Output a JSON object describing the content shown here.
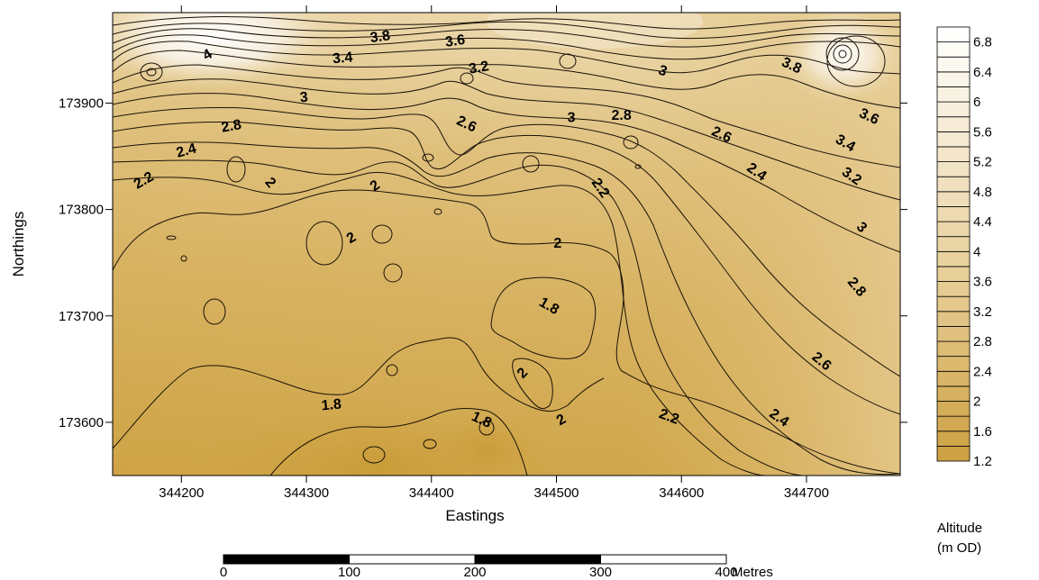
{
  "chart_data": {
    "type": "contour-map",
    "xlabel": "Eastings",
    "ylabel": "Northings",
    "x_range": [
      344145,
      344775
    ],
    "y_range": [
      173550,
      173985
    ],
    "x_ticks": [
      "344200",
      "344300",
      "344400",
      "344500",
      "344600",
      "344700"
    ],
    "x_tick_values": [
      344200,
      344300,
      344400,
      344500,
      344600,
      344700
    ],
    "y_ticks": [
      "173900",
      "173800",
      "173700",
      "173600"
    ],
    "y_tick_values": [
      173900,
      173800,
      173700,
      173600
    ],
    "contour_interval": 0.1,
    "contour_labels": [
      {
        "text": "3.8",
        "e": 344359,
        "n": 173962,
        "angle": -8
      },
      {
        "text": "3.6",
        "e": 344419,
        "n": 173958,
        "angle": -8
      },
      {
        "text": "4",
        "e": 344221,
        "n": 173945,
        "angle": -30
      },
      {
        "text": "3.4",
        "e": 344329,
        "n": 173942,
        "angle": -5
      },
      {
        "text": "3.2",
        "e": 344438,
        "n": 173933,
        "angle": -10
      },
      {
        "text": "3",
        "e": 344298,
        "n": 173905,
        "angle": -5
      },
      {
        "text": "3",
        "e": 344512,
        "n": 173886,
        "angle": 0
      },
      {
        "text": "3",
        "e": 344585,
        "n": 173930,
        "angle": 20
      },
      {
        "text": "2.8",
        "e": 344240,
        "n": 173878,
        "angle": -10
      },
      {
        "text": "2.8",
        "e": 344552,
        "n": 173888,
        "angle": 0
      },
      {
        "text": "2.6",
        "e": 344428,
        "n": 173880,
        "angle": 25
      },
      {
        "text": "2.6",
        "e": 344632,
        "n": 173870,
        "angle": 25
      },
      {
        "text": "2.4",
        "e": 344204,
        "n": 173855,
        "angle": -15
      },
      {
        "text": "2.4",
        "e": 344660,
        "n": 173835,
        "angle": 35
      },
      {
        "text": "2.2",
        "e": 344170,
        "n": 173827,
        "angle": -30
      },
      {
        "text": "2.2",
        "e": 344535,
        "n": 173820,
        "angle": 55
      },
      {
        "text": "2",
        "e": 344271,
        "n": 173825,
        "angle": 50
      },
      {
        "text": "2",
        "e": 344355,
        "n": 173822,
        "angle": -35
      },
      {
        "text": "2",
        "e": 344336,
        "n": 173773,
        "angle": -30
      },
      {
        "text": "2",
        "e": 344501,
        "n": 173768,
        "angle": 0
      },
      {
        "text": "1.8",
        "e": 344494,
        "n": 173709,
        "angle": 30
      },
      {
        "text": "2",
        "e": 344473,
        "n": 173646,
        "angle": -45
      },
      {
        "text": "1.8",
        "e": 344320,
        "n": 173616,
        "angle": -5
      },
      {
        "text": "1.8",
        "e": 344440,
        "n": 173602,
        "angle": 25
      },
      {
        "text": "2",
        "e": 344504,
        "n": 173602,
        "angle": -30
      },
      {
        "text": "2.2",
        "e": 344590,
        "n": 173605,
        "angle": 20
      },
      {
        "text": "3.8",
        "e": 344688,
        "n": 173935,
        "angle": 25
      },
      {
        "text": "3.6",
        "e": 344750,
        "n": 173887,
        "angle": 25
      },
      {
        "text": "3.4",
        "e": 344731,
        "n": 173862,
        "angle": 30
      },
      {
        "text": "3.2",
        "e": 344736,
        "n": 173831,
        "angle": 35
      },
      {
        "text": "3",
        "e": 344744,
        "n": 173783,
        "angle": 45
      },
      {
        "text": "2.8",
        "e": 344740,
        "n": 173727,
        "angle": 50
      },
      {
        "text": "2.6",
        "e": 344712,
        "n": 173657,
        "angle": 40
      },
      {
        "text": "2.4",
        "e": 344678,
        "n": 173604,
        "angle": 35
      }
    ]
  },
  "legend": {
    "title_line1": "Altitude",
    "title_line2": "(m OD)",
    "steps": [
      1.2,
      1.4,
      1.6,
      1.8,
      2,
      2.2,
      2.4,
      2.6,
      2.8,
      3,
      3.2,
      3.4,
      3.6,
      3.8,
      4,
      4.2,
      4.4,
      4.6,
      4.8,
      5,
      5.2,
      5.4,
      5.6,
      5.8,
      6,
      6.2,
      6.4,
      6.6,
      6.8,
      7
    ],
    "labels": [
      "6.8",
      "6.4",
      "6",
      "5.6",
      "5.2",
      "4.8",
      "4.4",
      "4",
      "3.6",
      "3.2",
      "2.8",
      "2.4",
      "2",
      "1.6",
      "1.2"
    ],
    "label_values": [
      6.8,
      6.4,
      6,
      5.6,
      5.2,
      4.8,
      4.4,
      4,
      3.6,
      3.2,
      2.8,
      2.4,
      2,
      1.6,
      1.2
    ],
    "color_low": "#cca040",
    "color_mid": "#e6cc94",
    "color_high": "#ffffff"
  },
  "scale_bar": {
    "labels": [
      "0",
      "100",
      "200",
      "300",
      "400"
    ],
    "values": [
      0,
      100,
      200,
      300,
      400
    ],
    "unit": "Metres",
    "fill_colors": [
      "#000000",
      "#ffffff",
      "#000000",
      "#ffffff"
    ]
  }
}
